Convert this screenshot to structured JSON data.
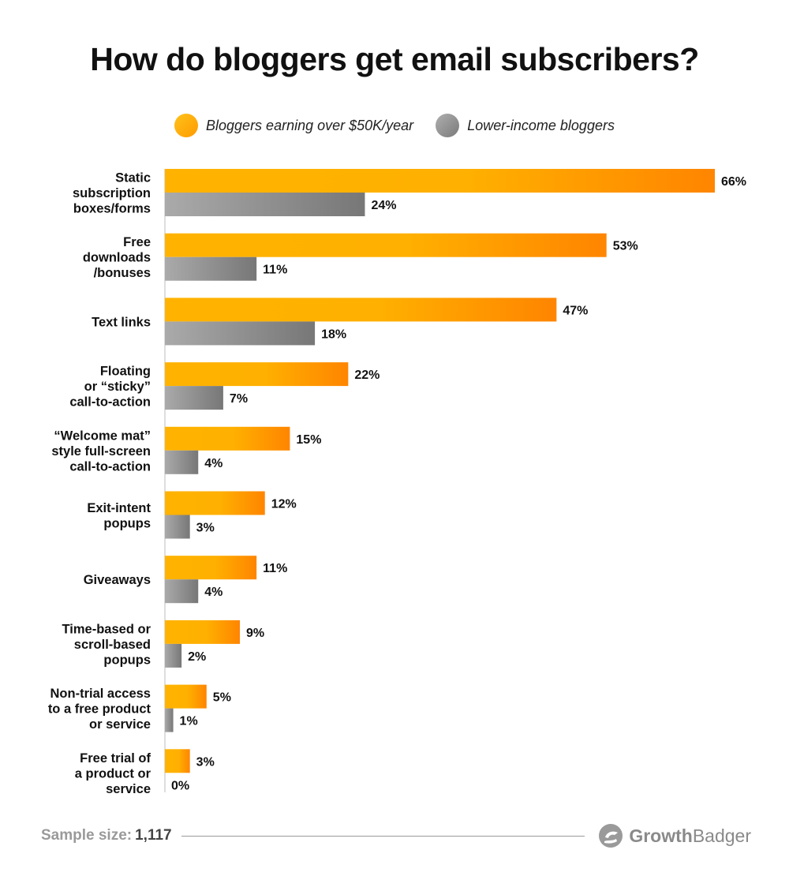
{
  "chart_data": {
    "type": "bar",
    "orientation": "horizontal",
    "title": "How do bloggers get email subscribers?",
    "categories": [
      "Static subscription boxes/forms",
      "Free downloads /bonuses",
      "Text links",
      "Floating or “sticky” call-to-action",
      "“Welcome mat” style full-screen call-to-action",
      "Exit-intent popups",
      "Giveaways",
      "Time-based or scroll-based popups",
      "Non-trial access to a free product or service",
      "Free trial of a product or service"
    ],
    "category_lines": [
      [
        "Static",
        "subscription",
        "boxes/forms"
      ],
      [
        "Free",
        "downloads",
        "/bonuses"
      ],
      [
        "Text links"
      ],
      [
        "Floating",
        "or “sticky”",
        "call-to-action"
      ],
      [
        "“Welcome mat”",
        "style full-screen",
        "call-to-action"
      ],
      [
        "Exit-intent",
        "popups"
      ],
      [
        "Giveaways"
      ],
      [
        "Time-based or",
        "scroll-based",
        "popups"
      ],
      [
        "Non-trial access",
        "to a free product",
        "or service"
      ],
      [
        "Free trial of",
        "a product or",
        "service"
      ]
    ],
    "series": [
      {
        "name": "Bloggers earning over $50K/year",
        "values": [
          66,
          53,
          47,
          22,
          15,
          12,
          11,
          9,
          5,
          3
        ],
        "color": "#FFB300",
        "color_end": "#FF8A00"
      },
      {
        "name": "Lower-income bloggers",
        "values": [
          24,
          11,
          18,
          7,
          4,
          3,
          4,
          2,
          1,
          0
        ],
        "color": "#A6A6A6",
        "color_end": "#7A7A7A"
      }
    ],
    "value_suffix": "%",
    "xlim": [
      0,
      66
    ],
    "legend_position": "top-center",
    "grid": false
  },
  "footer": {
    "sample_label": "Sample size:",
    "sample_value": "1,117",
    "brand_part1": "Growth",
    "brand_part2": "Badger",
    "brand_icon": "growthbadger-logo-icon"
  }
}
